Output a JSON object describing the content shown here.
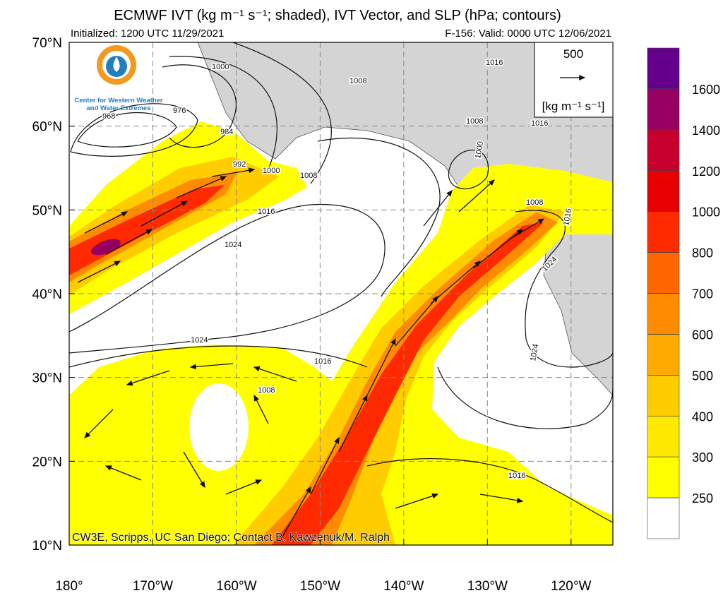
{
  "header": {
    "title": "ECMWF IVT (kg m⁻¹ s⁻¹; shaded), IVT Vector, and SLP (hPa; contours)",
    "initialized": "Initialized: 1200 UTC 11/29/2021",
    "valid": "F-156: Valid: 0000 UTC 12/06/2021"
  },
  "logo": {
    "line1": "Center for Western Weather",
    "line2": "and Water Extremes"
  },
  "vector_legend": {
    "value": 500,
    "units": "[kg m⁻¹ s⁻¹]"
  },
  "axes": {
    "ylim": [
      10,
      70
    ],
    "yticks": [
      {
        "value": 10,
        "label": "10°N"
      },
      {
        "value": 20,
        "label": "20°N"
      },
      {
        "value": 30,
        "label": "30°N"
      },
      {
        "value": 40,
        "label": "40°N"
      },
      {
        "value": 50,
        "label": "50°N"
      },
      {
        "value": 60,
        "label": "60°N"
      },
      {
        "value": 70,
        "label": "70°N"
      }
    ],
    "xlim": [
      -180,
      -115
    ],
    "xticks": [
      {
        "value": -180,
        "label": "180°"
      },
      {
        "value": -170,
        "label": "170°W"
      },
      {
        "value": -160,
        "label": "160°W"
      },
      {
        "value": -150,
        "label": "150°W"
      },
      {
        "value": -140,
        "label": "140°W"
      },
      {
        "value": -130,
        "label": "130°W"
      },
      {
        "value": -120,
        "label": "120°W"
      }
    ],
    "grid": true
  },
  "colorbar": {
    "ticks": [
      250,
      300,
      400,
      500,
      600,
      700,
      800,
      1000,
      1200,
      1400,
      1600
    ],
    "colors": [
      "#ffffff",
      "#ffff00",
      "#ffe800",
      "#ffcc00",
      "#ffaa00",
      "#ff8c00",
      "#ff6600",
      "#ff2a00",
      "#e60000",
      "#c8002e",
      "#960060",
      "#64008c"
    ]
  },
  "contour_labels": [
    968,
    976,
    984,
    992,
    1000,
    1000,
    1008,
    1008,
    1016,
    1016,
    1024,
    1024,
    1016,
    1008,
    1008,
    1016,
    1000,
    1008,
    1016,
    1024,
    1024,
    1016
  ],
  "credit": "CW3E, Scripps, UC San Diego; Contact B. Kawzenuk/M. Ralph"
}
